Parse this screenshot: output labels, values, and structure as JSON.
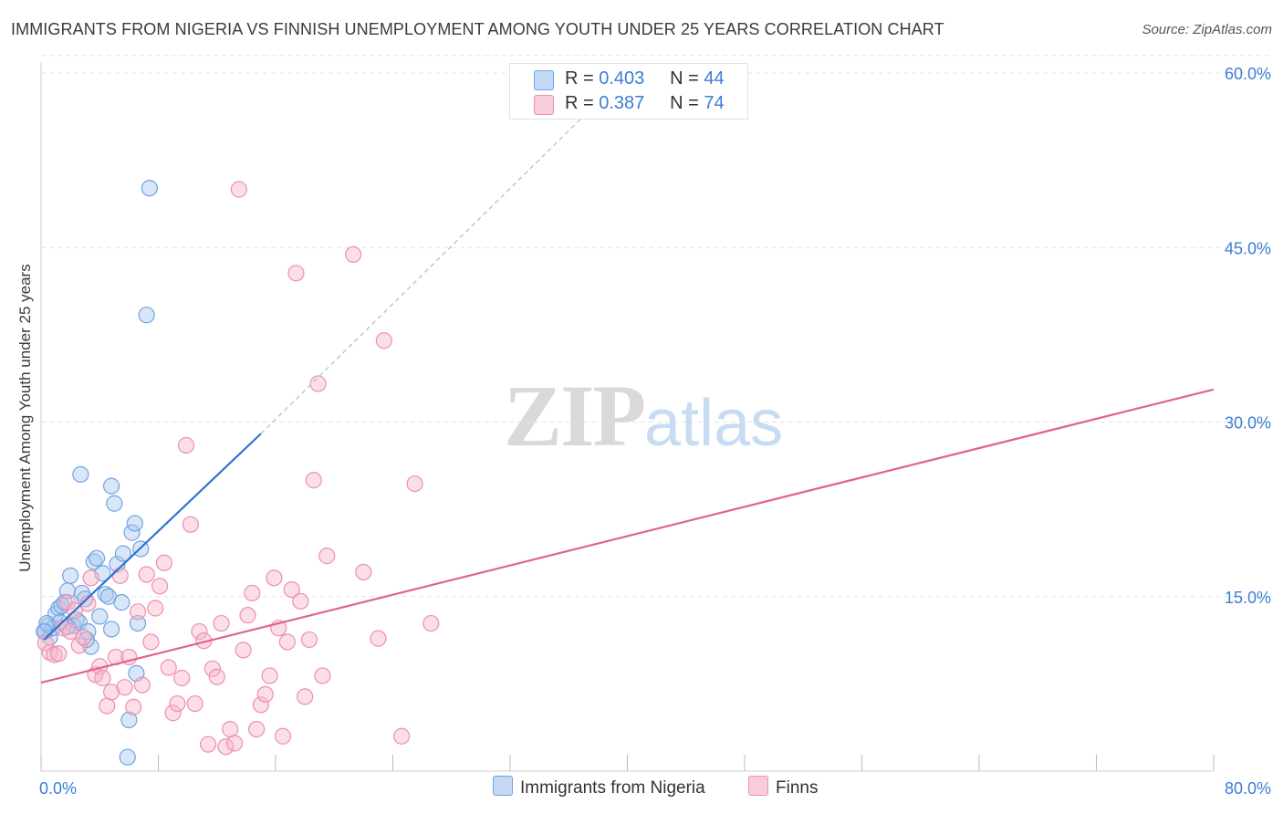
{
  "title": "IMMIGRANTS FROM NIGERIA VS FINNISH UNEMPLOYMENT AMONG YOUTH UNDER 25 YEARS CORRELATION CHART",
  "source": "Source: ZipAtlas.com",
  "watermark": {
    "zip": "ZIP",
    "atlas": "atlas"
  },
  "legend": {
    "rows": [
      {
        "r_label": "R =",
        "r": "0.403",
        "n_label": "N =",
        "n": "44",
        "color": "#a8c8f0"
      },
      {
        "r_label": "R =",
        "r": "0.387",
        "n_label": "N =",
        "n": "74",
        "color": "#f7b6c9"
      }
    ]
  },
  "bottom_legend": [
    "Immigrants from Nigeria",
    "Finns"
  ],
  "chart_data": {
    "type": "scatter",
    "xlabel": "",
    "ylabel": "Unemployment Among Youth under 25 years",
    "xlim": [
      0,
      80
    ],
    "ylim": [
      0,
      60
    ],
    "x_tick_labels": [
      "0.0%",
      "80.0%"
    ],
    "y_tick_labels": [
      "15.0%",
      "30.0%",
      "45.0%",
      "60.0%"
    ],
    "y_ticks": [
      15,
      30,
      45,
      60
    ],
    "grid": true,
    "legend_position": "top-center",
    "series": [
      {
        "name": "Immigrants from Nigeria",
        "color": "#6fa3e0",
        "fill": "rgba(168,200,240,0.45)",
        "points": [
          [
            0.3,
            12.0
          ],
          [
            0.5,
            12.5
          ],
          [
            0.6,
            11.5
          ],
          [
            0.8,
            12.3
          ],
          [
            1.0,
            13.5
          ],
          [
            1.2,
            14.0
          ],
          [
            1.4,
            14.2
          ],
          [
            1.6,
            14.5
          ],
          [
            1.8,
            15.5
          ],
          [
            2.0,
            16.8
          ],
          [
            2.2,
            12.5
          ],
          [
            2.4,
            13.0
          ],
          [
            2.6,
            12.8
          ],
          [
            2.8,
            15.3
          ],
          [
            3.0,
            14.8
          ],
          [
            3.2,
            12.0
          ],
          [
            3.4,
            10.7
          ],
          [
            3.6,
            18.0
          ],
          [
            3.8,
            18.3
          ],
          [
            4.0,
            13.3
          ],
          [
            4.2,
            17.0
          ],
          [
            4.4,
            15.2
          ],
          [
            4.6,
            15.0
          ],
          [
            4.8,
            12.2
          ],
          [
            5.0,
            23.0
          ],
          [
            5.2,
            17.8
          ],
          [
            5.5,
            14.5
          ],
          [
            5.6,
            18.7
          ],
          [
            6.2,
            20.5
          ],
          [
            6.4,
            21.3
          ],
          [
            6.6,
            12.7
          ],
          [
            6.8,
            19.1
          ],
          [
            1.8,
            12.4
          ],
          [
            0.4,
            12.7
          ],
          [
            2.7,
            25.5
          ],
          [
            4.8,
            24.5
          ],
          [
            7.4,
            50.1
          ],
          [
            7.2,
            39.2
          ],
          [
            6.5,
            8.4
          ],
          [
            6.0,
            4.4
          ],
          [
            5.9,
            1.2
          ],
          [
            0.2,
            12.0
          ],
          [
            1.3,
            12.8
          ],
          [
            3.1,
            11.3
          ]
        ]
      },
      {
        "name": "Finns",
        "color": "#ee8fae",
        "fill": "rgba(247,182,201,0.45)",
        "points": [
          [
            0.3,
            11.0
          ],
          [
            0.6,
            10.2
          ],
          [
            0.9,
            10.0
          ],
          [
            1.2,
            10.1
          ],
          [
            1.5,
            12.3
          ],
          [
            1.8,
            14.5
          ],
          [
            2.0,
            12.0
          ],
          [
            2.3,
            13.8
          ],
          [
            2.6,
            10.8
          ],
          [
            2.9,
            11.5
          ],
          [
            3.2,
            14.4
          ],
          [
            3.4,
            16.6
          ],
          [
            3.7,
            8.3
          ],
          [
            4.0,
            9.0
          ],
          [
            4.2,
            8.0
          ],
          [
            4.5,
            5.6
          ],
          [
            4.8,
            6.8
          ],
          [
            5.1,
            9.8
          ],
          [
            5.4,
            16.8
          ],
          [
            5.7,
            7.2
          ],
          [
            6.0,
            9.8
          ],
          [
            6.3,
            5.5
          ],
          [
            6.6,
            13.7
          ],
          [
            6.9,
            7.4
          ],
          [
            7.2,
            16.9
          ],
          [
            7.5,
            11.1
          ],
          [
            7.8,
            14.0
          ],
          [
            8.1,
            15.9
          ],
          [
            8.4,
            17.9
          ],
          [
            8.7,
            8.9
          ],
          [
            9.0,
            5.0
          ],
          [
            9.3,
            5.8
          ],
          [
            9.6,
            8.0
          ],
          [
            9.9,
            28.0
          ],
          [
            10.2,
            21.2
          ],
          [
            10.5,
            5.8
          ],
          [
            10.8,
            12.0
          ],
          [
            11.1,
            11.2
          ],
          [
            11.4,
            2.3
          ],
          [
            11.7,
            8.8
          ],
          [
            12.0,
            8.1
          ],
          [
            12.3,
            12.7
          ],
          [
            12.6,
            2.1
          ],
          [
            12.9,
            3.6
          ],
          [
            13.2,
            2.4
          ],
          [
            13.5,
            50.0
          ],
          [
            13.8,
            10.4
          ],
          [
            14.1,
            13.4
          ],
          [
            14.4,
            15.3
          ],
          [
            14.7,
            3.6
          ],
          [
            15.0,
            5.7
          ],
          [
            15.3,
            6.6
          ],
          [
            15.6,
            8.2
          ],
          [
            15.9,
            16.6
          ],
          [
            16.2,
            12.3
          ],
          [
            16.5,
            3.0
          ],
          [
            16.8,
            11.1
          ],
          [
            17.1,
            15.6
          ],
          [
            17.4,
            42.8
          ],
          [
            17.7,
            14.6
          ],
          [
            18.0,
            6.4
          ],
          [
            18.3,
            11.3
          ],
          [
            18.6,
            25.0
          ],
          [
            18.9,
            33.3
          ],
          [
            19.2,
            8.2
          ],
          [
            19.5,
            18.5
          ],
          [
            21.3,
            44.4
          ],
          [
            22.0,
            17.1
          ],
          [
            23.0,
            11.4
          ],
          [
            23.4,
            37.0
          ],
          [
            24.6,
            3.0
          ],
          [
            25.5,
            24.7
          ],
          [
            26.6,
            12.7
          ],
          [
            33.5,
            57.0
          ]
        ]
      }
    ],
    "trendlines": [
      {
        "series": "Immigrants from Nigeria",
        "x": [
          0.2,
          15
        ],
        "y": [
          11.3,
          29.0
        ],
        "dashed_extension_to": [
          40,
          60
        ]
      },
      {
        "series": "Finns",
        "x": [
          0,
          80
        ],
        "y": [
          7.6,
          32.8
        ]
      }
    ]
  }
}
